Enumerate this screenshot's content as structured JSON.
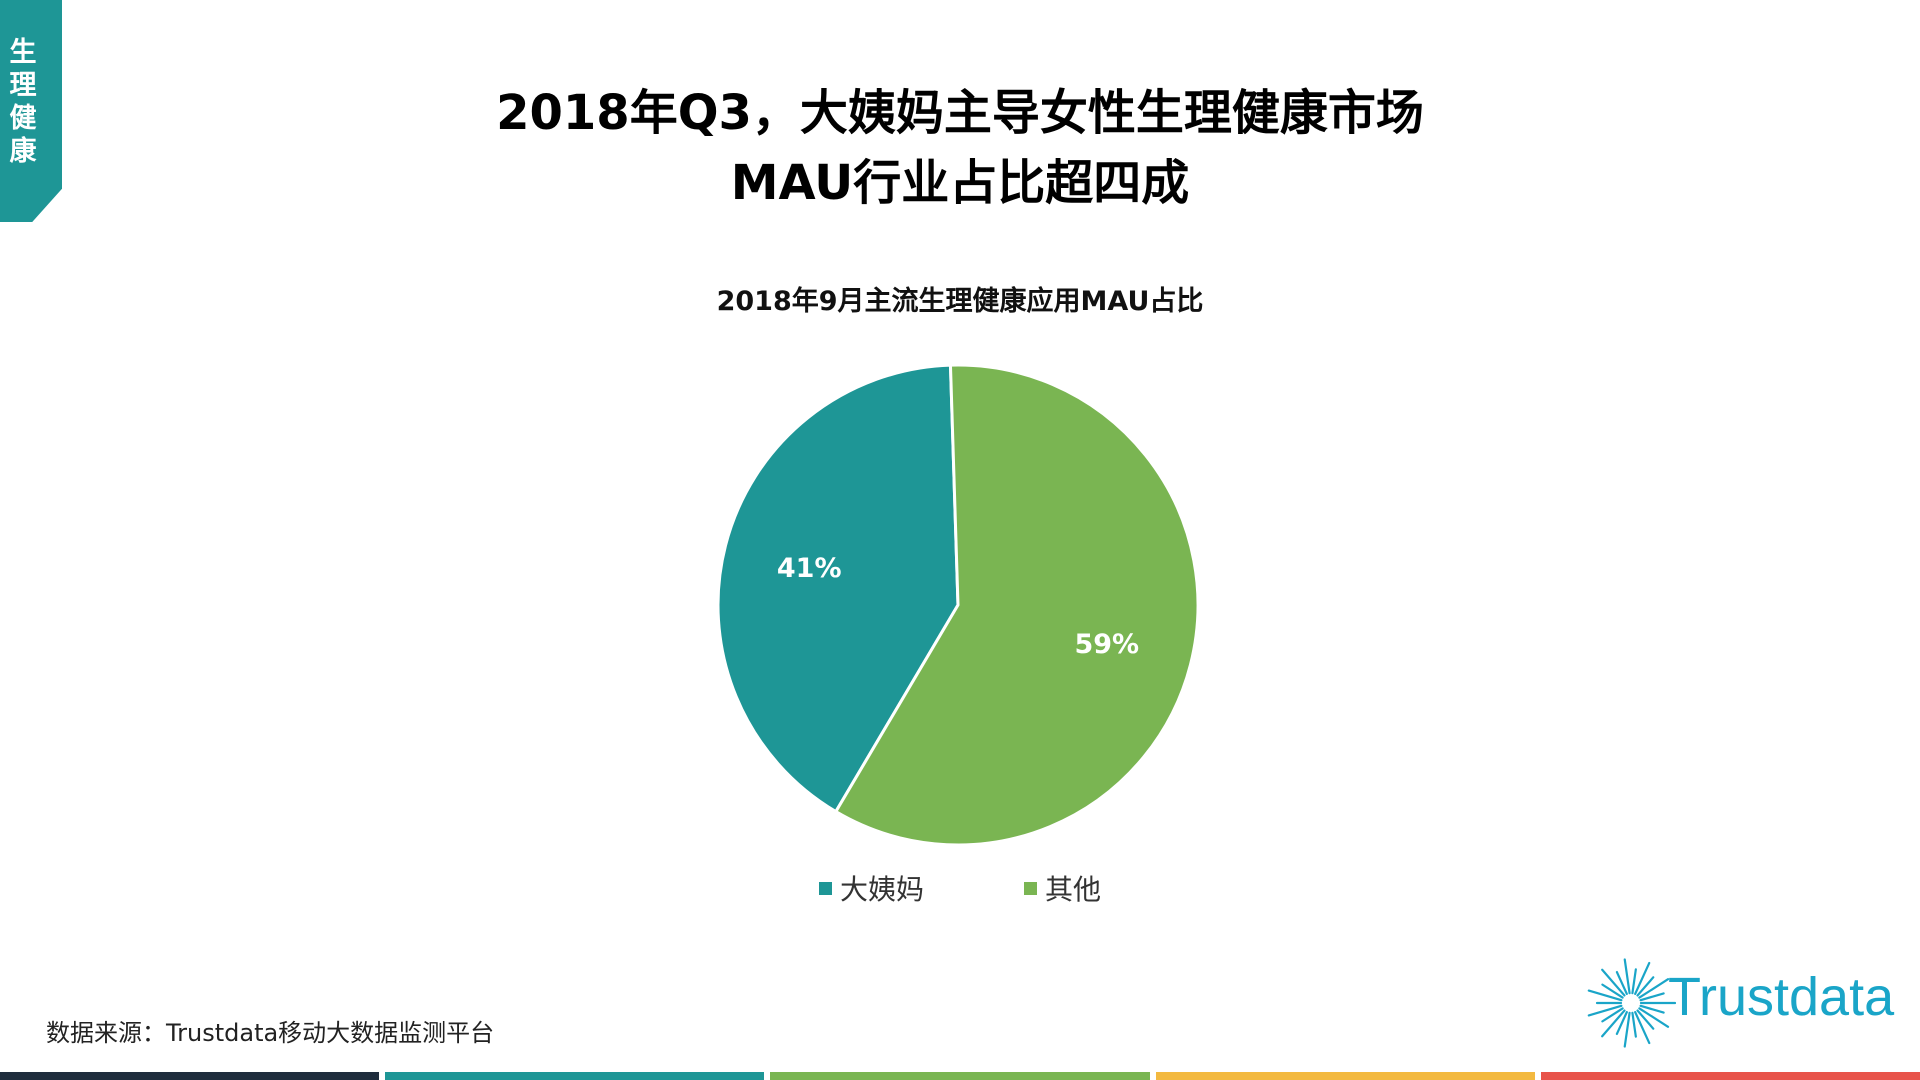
{
  "side_tab": {
    "label": "生\n理\n健\n康",
    "color": "#1e9696"
  },
  "title": {
    "line1": "2018年Q3，大姨妈主导女性生理健康市场",
    "line2": "MAU行业占比超四成"
  },
  "chart_data": {
    "type": "pie",
    "title": "2018年9月主流生理健康应用MAU占比",
    "slices": [
      {
        "label": "大姨妈",
        "value": 41,
        "display": "41%",
        "color": "#1e9696"
      },
      {
        "label": "其他",
        "value": 59,
        "display": "59%",
        "color": "#7ab552"
      }
    ],
    "legend_position": "bottom"
  },
  "source": "数据来源：Trustdata移动大数据监测平台",
  "logo": {
    "text": "Trustdata",
    "icon": "sunburst-icon",
    "color": "#1aa5c8"
  },
  "footer_colors": [
    "#1f2d3d",
    "#1e9696",
    "#7ab552",
    "#f3b940",
    "#e8534a"
  ]
}
